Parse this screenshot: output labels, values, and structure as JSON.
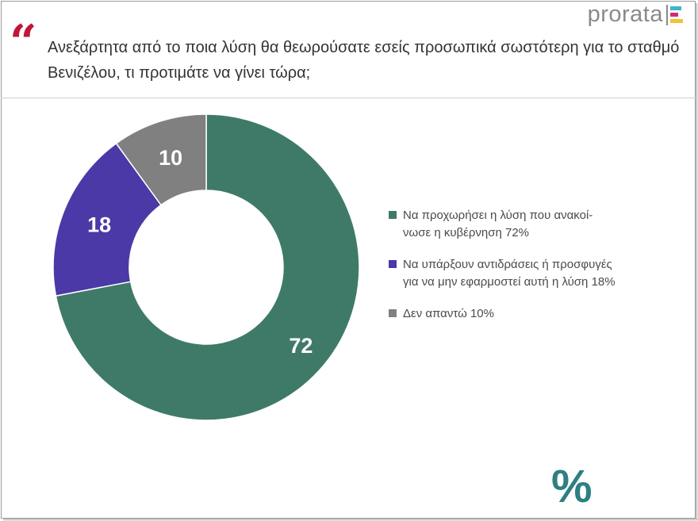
{
  "brand": {
    "logo_text": "prorata",
    "percent_mark": "%"
  },
  "question": {
    "quote_glyph": "“",
    "text": "Ανεξάρτητα από το ποια λύση θα θεωρούσατε εσείς προσωπικά σωστότερη για το σταθμό Βενιζέλου, τι προτιμάτε να γίνει τώρα;"
  },
  "chart_data": {
    "type": "pie",
    "donut": true,
    "categories": [
      "Να προχωρήσει η λύση που ανακοί- νωσε η κυβέρνηση 72%",
      "Να υπάρξουν αντιδράσεις ή προσφυγές για να μην εφαρμοστεί αυτή η λύση 18%",
      "Δεν απαντώ 10%"
    ],
    "values": [
      72,
      18,
      10
    ],
    "data_labels": [
      "72",
      "18",
      "10"
    ],
    "colors": [
      "#3f7a68",
      "#4a39a7",
      "#808080"
    ],
    "legend_position": "right"
  },
  "legend": {
    "items": [
      {
        "line1": "Να προχωρήσει η λύση που ανακοί-",
        "line2": "νωσε η κυβέρνηση 72%"
      },
      {
        "line1": "Να υπάρξουν αντιδράσεις ή προσφυγές",
        "line2": "για να μην εφαρμοστεί αυτή η λύση 18%"
      },
      {
        "line1": "Δεν απαντώ 10%",
        "line2": ""
      }
    ]
  }
}
